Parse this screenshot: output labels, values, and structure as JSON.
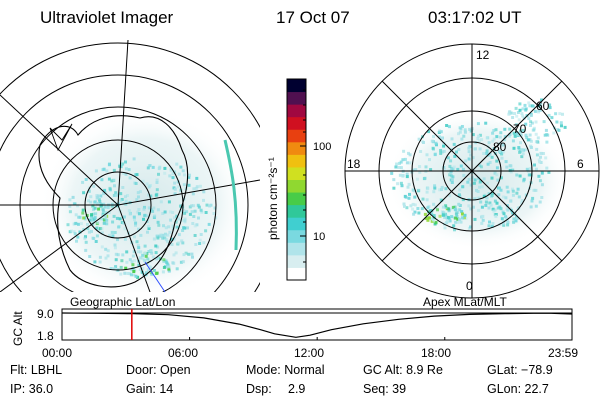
{
  "header": {
    "instrument": "Ultraviolet Imager",
    "date": "17 Oct 07",
    "time": "03:17:02 UT"
  },
  "colorbar": {
    "label": "photon cm⁻²s⁻¹",
    "ticks": [
      "100",
      "10"
    ],
    "colors": [
      "#ffffff",
      "#d8eef0",
      "#b0e4ea",
      "#7ad9e0",
      "#40cfd0",
      "#30c89a",
      "#48cc48",
      "#90d830",
      "#d0e020",
      "#f0c010",
      "#f08a10",
      "#e84010",
      "#d01020",
      "#a00840",
      "#501050",
      "#000030"
    ]
  },
  "left_map": {
    "projection_label": "Geographic Lat/Lon"
  },
  "right_map": {
    "projection_label": "Apex MLat/MLT",
    "mlt_labels": {
      "top": "12",
      "right": "6",
      "bottom": "0",
      "left": "18"
    },
    "mlat_labels": [
      "60",
      "70",
      "80"
    ]
  },
  "chart_data": {
    "type": "line",
    "title": "",
    "ylabel": "GC Alt",
    "y_ticks": [
      "9.0",
      "1.8"
    ],
    "x_ticks": [
      "00:00",
      "06:00",
      "12:00",
      "18:00",
      "23:59"
    ],
    "ylim": [
      1.8,
      9.0
    ],
    "xlim": [
      0,
      1439
    ],
    "current_time_minute": 197,
    "current_marker_color": "#e00000",
    "series": [
      {
        "x": [
          0,
          100,
          200,
          300,
          400,
          500,
          560,
          600,
          660,
          700,
          760,
          850,
          950,
          1050,
          1150,
          1250,
          1330,
          1380,
          1439
        ],
        "y": [
          9.0,
          8.9,
          8.8,
          8.5,
          7.6,
          5.8,
          4.2,
          3.0,
          2.0,
          2.6,
          4.2,
          5.9,
          7.2,
          8.1,
          8.6,
          8.8,
          8.9,
          8.9,
          8.7
        ]
      }
    ]
  },
  "info": {
    "filter": "Flt: LBHL",
    "door": "Door: Open",
    "mode": "Mode: Normal",
    "gc_alt": "GC Alt: 8.9 Re",
    "glat": "GLat: −78.9",
    "ip": "IP: 36.0",
    "gain": "Gain: 14",
    "dsp_label": "Dsp:",
    "dsp_value": "2.9",
    "seq": "Seq: 39",
    "glon": "GLon:  22.7"
  }
}
